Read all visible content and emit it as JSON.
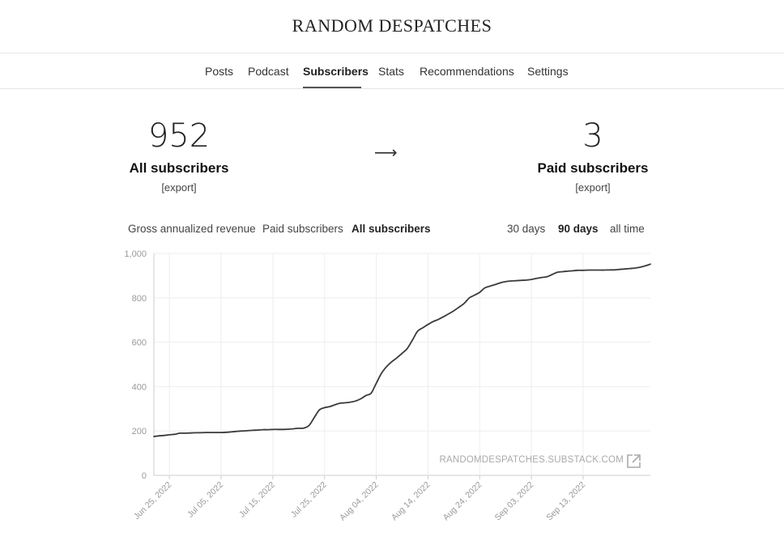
{
  "site": {
    "title": "RANDOM DESPATCHES"
  },
  "nav": {
    "tabs": [
      {
        "label": "Posts",
        "active": false
      },
      {
        "label": "Podcast",
        "active": false
      },
      {
        "label": "Subscribers",
        "active": true
      },
      {
        "label": "Stats",
        "active": false
      },
      {
        "label": "Recommendations",
        "active": false
      },
      {
        "label": "Settings",
        "active": false
      }
    ]
  },
  "stats": {
    "all": {
      "value": "952",
      "label": "All subscribers",
      "export": "[export]"
    },
    "arrow": "⟶",
    "paid": {
      "value": "3",
      "label": "Paid subscribers",
      "export": "[export]"
    }
  },
  "metric_filters": [
    {
      "label": "Gross annualized revenue",
      "active": false
    },
    {
      "label": "Paid subscribers",
      "active": false
    },
    {
      "label": "All subscribers",
      "active": true
    }
  ],
  "range_filters": [
    {
      "label": "30 days",
      "active": false
    },
    {
      "label": "90 days",
      "active": true
    },
    {
      "label": "all time",
      "active": false
    }
  ],
  "watermark": "RANDOMDESPATCHES.SUBSTACK.COM",
  "colors": {
    "line": "#3a3a3a",
    "grid": "#eeeeee",
    "axis": "#cccccc"
  },
  "icons": {
    "external_link": "external-link-icon"
  },
  "chart_data": {
    "type": "line",
    "start_date": "Jun 22, 2022",
    "x_tick_labels": [
      "Jun 25, 2022",
      "Jul 05, 2022",
      "Jul 15, 2022",
      "Jul 25, 2022",
      "Aug 04, 2022",
      "Aug 14, 2022",
      "Aug 24, 2022",
      "Sep 03, 2022",
      "Sep 13, 2022"
    ],
    "y_tick_labels": [
      "0",
      "200",
      "400",
      "600",
      "800",
      "1,000"
    ],
    "ylim": [
      0,
      1000
    ],
    "grid": true,
    "series": [
      {
        "name": "All subscribers",
        "values": [
          175,
          178,
          180,
          183,
          185,
          190,
          190,
          191,
          192,
          192,
          193,
          193,
          193,
          193,
          194,
          196,
          198,
          200,
          201,
          203,
          204,
          206,
          206,
          207,
          207,
          207,
          208,
          210,
          212,
          213,
          225,
          260,
          295,
          305,
          310,
          318,
          325,
          327,
          330,
          335,
          345,
          360,
          370,
          415,
          460,
          490,
          512,
          530,
          550,
          572,
          610,
          650,
          665,
          680,
          693,
          703,
          715,
          728,
          742,
          758,
          775,
          800,
          812,
          825,
          845,
          853,
          860,
          868,
          873,
          876,
          877,
          879,
          880,
          883,
          888,
          892,
          895,
          905,
          915,
          918,
          920,
          922,
          924,
          924,
          925,
          925,
          925,
          925,
          926,
          926,
          928,
          930,
          932,
          934,
          938,
          944,
          952
        ]
      }
    ]
  }
}
